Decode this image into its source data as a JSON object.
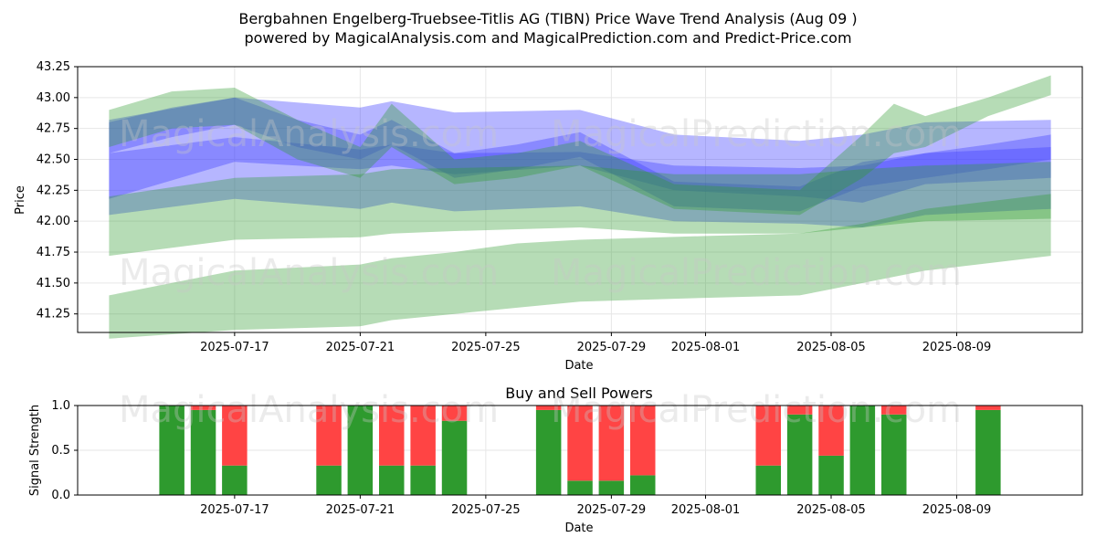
{
  "title_line1": "Bergbahnen Engelberg-Truebsee-Titlis AG (TIBN) Price Wave Trend Analysis (Aug 09 )",
  "title_line2": "powered by MagicalAnalysis.com and MagicalPrediction.com and Predict-Price.com",
  "watermarks": [
    "MagicalAnalysis.com",
    "MagicalPrediction.com"
  ],
  "colors": {
    "wave_blue": "#4040ff",
    "wave_green": "#2e9a2e",
    "buy": "#4caf50",
    "sell": "#ff4444"
  },
  "chart_data": [
    {
      "type": "area",
      "title": "",
      "xlabel": "Date",
      "ylabel": "Price",
      "xlim": [
        "2025-07-12",
        "2025-08-13"
      ],
      "ylim": [
        41.1,
        43.25
      ],
      "grid": true,
      "x_ticks": [
        "2025-07-17",
        "2025-07-21",
        "2025-07-25",
        "2025-07-29",
        "2025-08-01",
        "2025-08-05",
        "2025-08-09"
      ],
      "y_ticks": [
        "41.25",
        "41.50",
        "41.75",
        "42.00",
        "42.25",
        "42.50",
        "42.75",
        "43.00",
        "43.25"
      ],
      "series": [
        {
          "color": "blue",
          "x": [
            "2025-07-13",
            "2025-07-17",
            "2025-07-21",
            "2025-07-22",
            "2025-07-24",
            "2025-07-28",
            "2025-07-31",
            "2025-08-04",
            "2025-08-06",
            "2025-08-08",
            "2025-08-12"
          ],
          "upper": [
            42.82,
            43.0,
            42.92,
            42.97,
            42.88,
            42.9,
            42.7,
            42.65,
            42.7,
            42.8,
            42.82
          ],
          "lower": [
            42.18,
            42.48,
            42.42,
            42.45,
            42.38,
            42.45,
            42.25,
            42.2,
            42.15,
            42.3,
            42.35
          ]
        },
        {
          "color": "blue",
          "x": [
            "2025-07-13",
            "2025-07-17",
            "2025-07-21",
            "2025-07-22",
            "2025-07-24",
            "2025-07-28",
            "2025-07-31",
            "2025-08-04",
            "2025-08-06",
            "2025-08-08",
            "2025-08-12"
          ],
          "upper": [
            42.55,
            42.68,
            42.58,
            42.62,
            42.55,
            42.56,
            42.45,
            42.43,
            42.45,
            42.55,
            42.6
          ],
          "lower": [
            42.05,
            42.18,
            42.1,
            42.15,
            42.08,
            42.12,
            42.0,
            41.98,
            41.95,
            42.05,
            42.1
          ]
        },
        {
          "color": "blue",
          "x": [
            "2025-07-13",
            "2025-07-15",
            "2025-07-17",
            "2025-07-19",
            "2025-07-21",
            "2025-07-22",
            "2025-07-24",
            "2025-07-26",
            "2025-07-28",
            "2025-07-31",
            "2025-08-04",
            "2025-08-06",
            "2025-08-08",
            "2025-08-10",
            "2025-08-12"
          ],
          "upper": [
            42.8,
            42.92,
            43.0,
            42.82,
            42.7,
            42.82,
            42.55,
            42.62,
            42.72,
            42.32,
            42.28,
            42.48,
            42.55,
            42.62,
            42.7
          ],
          "lower": [
            42.55,
            42.68,
            42.78,
            42.6,
            42.5,
            42.62,
            42.35,
            42.42,
            42.52,
            42.12,
            42.08,
            42.28,
            42.35,
            42.42,
            42.5
          ]
        },
        {
          "color": "green",
          "x": [
            "2025-07-13",
            "2025-07-17",
            "2025-07-21",
            "2025-07-22",
            "2025-07-24",
            "2025-07-28",
            "2025-07-31",
            "2025-08-04",
            "2025-08-06",
            "2025-08-08",
            "2025-08-12"
          ],
          "upper": [
            42.2,
            42.35,
            42.38,
            42.42,
            42.43,
            42.45,
            42.38,
            42.38,
            42.42,
            42.45,
            42.48
          ],
          "lower": [
            41.72,
            41.85,
            41.87,
            41.9,
            41.92,
            41.95,
            41.9,
            41.9,
            41.95,
            42.0,
            42.02
          ]
        },
        {
          "color": "green",
          "x": [
            "2025-07-13",
            "2025-07-17",
            "2025-07-21",
            "2025-07-22",
            "2025-07-24",
            "2025-07-26",
            "2025-07-28",
            "2025-08-01",
            "2025-08-04",
            "2025-08-06",
            "2025-08-08",
            "2025-08-12"
          ],
          "upper": [
            41.4,
            41.6,
            41.65,
            41.7,
            41.75,
            41.82,
            41.85,
            41.88,
            41.9,
            41.98,
            42.1,
            42.22
          ],
          "lower": [
            41.05,
            41.12,
            41.15,
            41.2,
            41.25,
            41.3,
            41.35,
            41.38,
            41.4,
            41.5,
            41.6,
            41.72
          ]
        },
        {
          "color": "green",
          "x": [
            "2025-07-13",
            "2025-07-15",
            "2025-07-17",
            "2025-07-19",
            "2025-07-21",
            "2025-07-22",
            "2025-07-24",
            "2025-07-26",
            "2025-07-28",
            "2025-07-31",
            "2025-08-04",
            "2025-08-06",
            "2025-08-07",
            "2025-08-08",
            "2025-08-10",
            "2025-08-12"
          ],
          "upper": [
            42.9,
            43.05,
            43.08,
            42.82,
            42.6,
            42.95,
            42.5,
            42.55,
            42.65,
            42.3,
            42.25,
            42.7,
            42.95,
            42.85,
            43.0,
            43.18
          ],
          "lower": [
            42.6,
            42.75,
            42.78,
            42.5,
            42.35,
            42.6,
            42.3,
            42.35,
            42.45,
            42.1,
            42.05,
            42.35,
            42.55,
            42.6,
            42.85,
            43.02
          ]
        }
      ]
    },
    {
      "type": "bar",
      "title": "Buy and Sell Powers",
      "xlabel": "Date",
      "ylabel": "Signal Strength",
      "xlim": [
        "2025-07-12",
        "2025-08-13"
      ],
      "ylim": [
        0,
        1.0
      ],
      "grid": true,
      "x_ticks": [
        "2025-07-17",
        "2025-07-21",
        "2025-07-25",
        "2025-07-29",
        "2025-08-01",
        "2025-08-05",
        "2025-08-09"
      ],
      "y_ticks": [
        "0.0",
        "0.5",
        "1.0"
      ],
      "categories": [
        "2025-07-15",
        "2025-07-16",
        "2025-07-17",
        "2025-07-20",
        "2025-07-21",
        "2025-07-22",
        "2025-07-23",
        "2025-07-24",
        "2025-07-27",
        "2025-07-28",
        "2025-07-29",
        "2025-07-30",
        "2025-08-03",
        "2025-08-04",
        "2025-08-05",
        "2025-08-06",
        "2025-08-07",
        "2025-08-10"
      ],
      "series": [
        {
          "color": "green",
          "values": [
            1.0,
            0.95,
            0.33,
            0.33,
            1.0,
            0.33,
            0.33,
            0.83,
            0.95,
            0.16,
            0.16,
            0.22,
            0.33,
            0.9,
            0.44,
            1.0,
            0.9,
            0.95
          ]
        },
        {
          "color": "red",
          "values": [
            0.0,
            0.05,
            0.67,
            0.67,
            0.0,
            0.67,
            0.67,
            0.17,
            0.05,
            0.84,
            0.84,
            0.78,
            0.67,
            0.1,
            0.56,
            0.0,
            0.1,
            0.05
          ]
        }
      ]
    }
  ]
}
